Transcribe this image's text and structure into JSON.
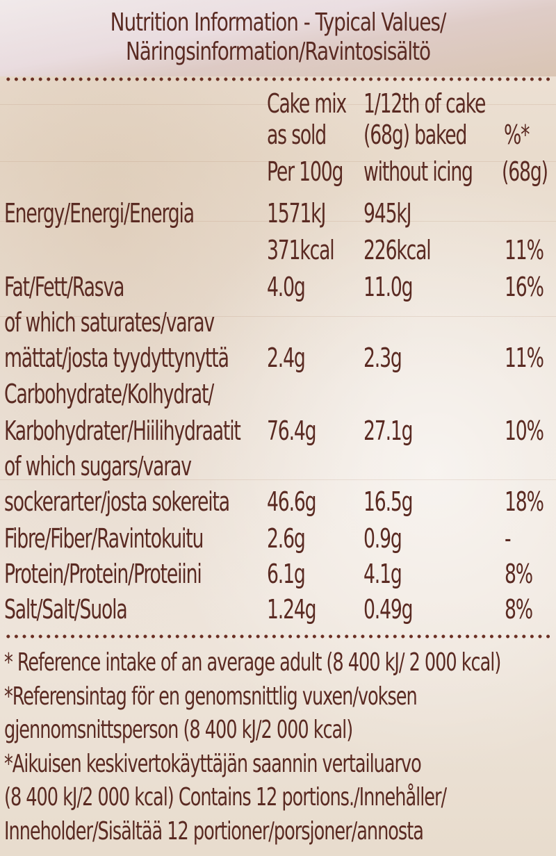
{
  "title": {
    "line1": "Nutrition Information - Typical Values/",
    "line2": "Näringsinformation/Ravintosisältö"
  },
  "columns": {
    "col1": [
      "Cake mix",
      "as sold",
      "Per 100g"
    ],
    "col2": [
      "1/12th of cake",
      "(68g) baked",
      "without icing"
    ],
    "col3": [
      "%*",
      "(68g)"
    ]
  },
  "rows": {
    "energy": {
      "label": "Energy/Energi/Energia",
      "kj_mix": "1571kJ",
      "kj_baked": "945kJ",
      "kcal_mix": "371kcal",
      "kcal_baked": "226kcal",
      "pct": "11%"
    },
    "fat": {
      "label": "Fat/Fett/Rasva",
      "mix": "4.0g",
      "baked": "11.0g",
      "pct": "16%"
    },
    "saturates": {
      "label1": "of which saturates/varav",
      "label2": "mättat/josta tyydyttynyttä",
      "mix": "2.4g",
      "baked": "2.3g",
      "pct": "11%"
    },
    "carbs": {
      "label1": "Carbohydrate/Kolhydrat/",
      "label2": "Karbohydrater/Hiilihydraatit",
      "mix": "76.4g",
      "baked": "27.1g",
      "pct": "10%"
    },
    "sugars": {
      "label1": "of which sugars/varav",
      "label2": "sockerarter/josta sokereita",
      "mix": "46.6g",
      "baked": "16.5g",
      "pct": "18%"
    },
    "fibre": {
      "label": "Fibre/Fiber/Ravintokuitu",
      "mix": "2.6g",
      "baked": "0.9g",
      "pct": "-"
    },
    "protein": {
      "label": "Protein/Protein/Proteiini",
      "mix": "6.1g",
      "baked": "4.1g",
      "pct": "8%"
    },
    "salt": {
      "label": "Salt/Salt/Suola",
      "mix": "1.24g",
      "baked": "0.49g",
      "pct": "8%"
    }
  },
  "footnote": [
    "* Reference intake of an average adult (8 400 kJ/ 2 000 kcal)",
    "*Referensintag för en genomsnittlig vuxen/voksen",
    "gjennomsnittsperson (8 400 kJ/2 000 kcal)",
    "*Aikuisen keskivertokäyttäjän saannin vertailuarvo",
    "(8 400 kJ/2 000 kcal) Contains 12 portions./Innehåller/",
    "Inneholder/Sisältää 12 portioner/porsjoner/annosta"
  ],
  "colors": {
    "text": "#5a2a22",
    "dots": "#6b3024"
  }
}
